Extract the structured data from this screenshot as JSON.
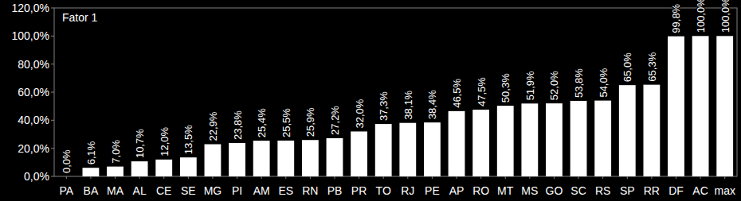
{
  "chart_data": {
    "type": "bar",
    "title": "Fator 1",
    "categories": [
      "PA",
      "BA",
      "MA",
      "AL",
      "CE",
      "SE",
      "MG",
      "PI",
      "AM",
      "ES",
      "RN",
      "PB",
      "PR",
      "TO",
      "RJ",
      "PE",
      "AP",
      "RO",
      "MT",
      "MS",
      "GO",
      "SC",
      "RS",
      "SP",
      "RR",
      "DF",
      "AC",
      "max"
    ],
    "values": [
      0,
      6.1,
      7.0,
      10.7,
      12.0,
      13.5,
      22.9,
      23.8,
      25.4,
      25.5,
      25.9,
      27.2,
      32.0,
      37.3,
      38.1,
      38.4,
      46.5,
      47.5,
      50.3,
      51.9,
      52.0,
      53.8,
      54.0,
      65.0,
      65.3,
      99.8,
      100,
      100
    ],
    "value_labels": [
      "0,0%",
      "6,1%",
      "7,0%",
      "10,7%",
      "12,0%",
      "13,5%",
      "22,9%",
      "23,8%",
      "25,4%",
      "25,5%",
      "25,9%",
      "27,2%",
      "32,0%",
      "37,3%",
      "38,1%",
      "38,4%",
      "46,5%",
      "47,5%",
      "50,3%",
      "51,9%",
      "52,0%",
      "53,8%",
      "54,0%",
      "65,0%",
      "65,3%",
      "99,8%",
      "100,0%",
      "100,0%"
    ],
    "color": "#ffffff",
    "ylim": [
      0,
      120
    ],
    "yticks": [
      {
        "value": 0,
        "label": "0,0%"
      },
      {
        "value": 20,
        "label": "20,0%"
      },
      {
        "value": 40,
        "label": "40,0%"
      },
      {
        "value": 60,
        "label": "60,0%"
      },
      {
        "value": 80,
        "label": "80,0%"
      },
      {
        "value": 100,
        "label": "100,0%"
      },
      {
        "value": 120,
        "label": "120,0%"
      }
    ],
    "grid": false,
    "data_labels": true
  }
}
